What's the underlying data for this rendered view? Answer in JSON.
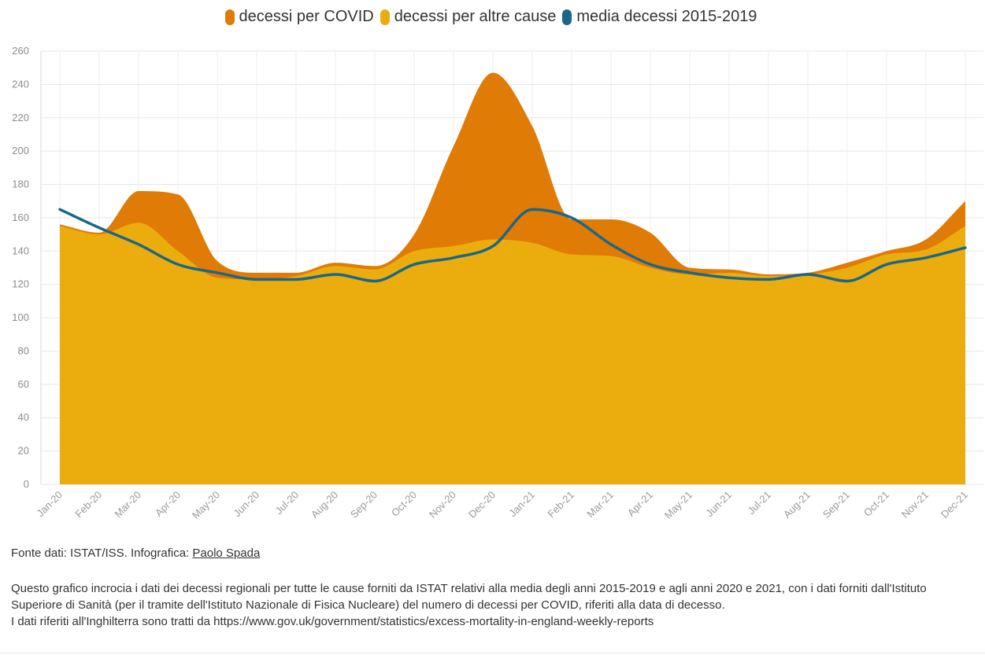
{
  "chart_data": {
    "type": "area",
    "title": "",
    "xlabel": "",
    "ylabel": "",
    "ylim": [
      0,
      260
    ],
    "yticks": [
      0,
      20,
      40,
      60,
      80,
      100,
      120,
      140,
      160,
      180,
      200,
      220,
      240,
      260
    ],
    "grid": true,
    "legend_position": "top-center",
    "categories": [
      "Jan-20",
      "Feb-20",
      "Mar-20",
      "Apr-20",
      "May-20",
      "Jun-20",
      "Jul-20",
      "Aug-20",
      "Sep-20",
      "Oct-20",
      "Nov-20",
      "Dec-20",
      "Jan-21",
      "Feb-21",
      "Mar-21",
      "Apr-21",
      "May-21",
      "Jun-21",
      "Jul-21",
      "Aug-21",
      "Sep-21",
      "Oct-21",
      "Nov-21",
      "Dec-21"
    ],
    "series": [
      {
        "name": "decessi per COVID",
        "kind": "stacked-area",
        "color": "#e07b05",
        "values": [
          1,
          1,
          19,
          34,
          10,
          4,
          2,
          2,
          2,
          10,
          60,
          100,
          70,
          21,
          22,
          21,
          4,
          2,
          1,
          1,
          3,
          2,
          6,
          15
        ]
      },
      {
        "name": "decessi per altre cause",
        "kind": "stacked-area",
        "color": "#ebad0e",
        "values": [
          155,
          150,
          157,
          140,
          124,
          123,
          125,
          131,
          129,
          140,
          143,
          147,
          145,
          138,
          137,
          130,
          126,
          127,
          125,
          126,
          130,
          138,
          141,
          155
        ]
      },
      {
        "name": "media decessi 2015-2019",
        "kind": "line",
        "color": "#1b6788",
        "values": [
          165,
          154,
          144,
          132,
          127,
          123,
          123,
          126,
          122,
          132,
          136,
          143,
          165,
          160,
          144,
          132,
          127,
          124,
          123,
          126,
          122,
          132,
          136,
          142
        ]
      }
    ]
  },
  "footer": {
    "source_prefix": "Fonte dati: ISTAT/ISS. Infografica: ",
    "source_author": "Paolo Spada",
    "note_line1": "Questo grafico incrocia i dati dei decessi regionali per tutte le cause forniti da ISTAT relativi alla media degli anni 2015-2019 e agli anni 2020 e 2021, con i dati forniti dall'Istituto Superiore di Sanità (per il tramite dell'Istituto Nazionale di Fisica Nucleare) del numero di decessi per COVID, riferiti alla data di decesso.",
    "note_line2": "I dati riferiti all'Inghilterra sono tratti da https://www.gov.uk/government/statistics/excess-mortality-in-england-weekly-reports"
  }
}
